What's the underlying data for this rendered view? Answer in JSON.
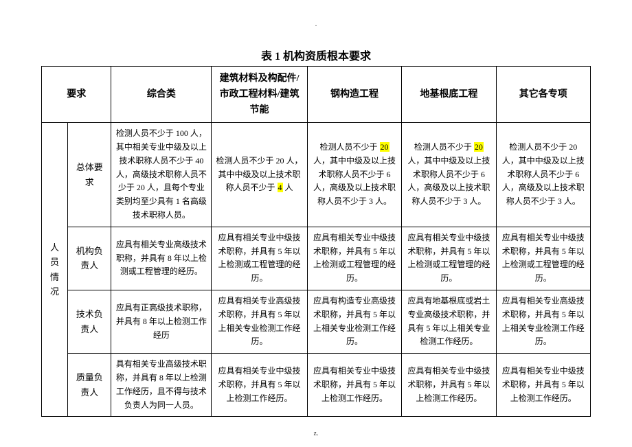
{
  "page": {
    "dot": ".",
    "footer": "z.",
    "title": "表 1 机构资质根本要求"
  },
  "headers": {
    "yaoqiu": "要求",
    "zonghe": "综合类",
    "jianzhu": "建筑材料及构配件/市政工程材料/建筑节能",
    "gang": "钢构造工程",
    "diji": "地基根底工程",
    "qita": "其它各专项"
  },
  "rowGroup": "人员情况",
  "rows": {
    "r1": {
      "label": "总体要求",
      "c1": "检测人员不少于 100 人，其中相关专业中级及以上技术职称人员不少于 40 人，高级技术职称人员不少于 20 人，且每个专业类别均至少具有 1 名高级技术职称人员。",
      "c2_a": "检测人员不少于 20 人，其中中级及以上技术职称人员不少于 ",
      "c2_hl": "4",
      "c2_b": " 人",
      "c3_a": "检测人员不少于 ",
      "c3_hl": "20",
      "c3_b": " 人，其中中级及以上技术职称人员不少于 6 人，高级及以上技术职称人员不少于 3 人。",
      "c4_a": "检测人员不少于 ",
      "c4_hl": "20",
      "c4_b": " 人，其中中级及以上技术职称人员不少于 6 人，高级及以上技术职称人员不少于 3 人。",
      "c5": "检测人员不少于 20 人，其中中级及以上技术职称人员不少于 6 人，高级及以上技术职称人员不少于 3 人。"
    },
    "r2": {
      "label": "机构负责人",
      "c1": "应具有相关专业高级技术职称，并具有 8 年以上检测或工程管理的经历。",
      "c2": "应具有相关专业中级技术职称，并具有 5 年以上检测或工程管理的经历。",
      "c3": "应具有相关专业中级技术职称，并具有 5 年以上检测或工程管理的经历。",
      "c4": "应具有相关专业中级技术职称，并具有 5 年以上检测或工程管理的经历。",
      "c5": "应具有相关专业中级技术职称，并具有 5 年以上检测或工程管理的经历。"
    },
    "r3": {
      "label": "技术负责人",
      "c1": "应具有正高级技术职称，并具有 8 年以上检测工作经历",
      "c2": "应具有相关专业高级技术职称，并具有 5 年以上相关专业检测工作经历。",
      "c3": "应具有构造专业高级技术职称，并具有 5 年以上相关专业检测工作经历。",
      "c4": "应具有地基根底或岩土专业高级技术职称，并具有 5 年以上相关专业检测工作经历。",
      "c5": "应具有相关专业高级技术职称，并具有 5 年以上相关专业检测工作经历。"
    },
    "r4": {
      "label": "质量负责人",
      "c1": "具有相关专业高级技术职称，并具有 8 年以上检测工作经历，且不得与技术负责人为同一人员。",
      "c2": "应具有相关专业中级技术职称，并具有 5 年以上检测工作经历。",
      "c3": "应具有相关专业中级技术职称，并具有 5 年以上检测工作经历。",
      "c4": "应具有相关专业中级技术职称，并具有 5 年以上检测工作经历。",
      "c5": "应具有相关专业中级技术职称，并具有 5 年以上检测工作经历。"
    }
  }
}
